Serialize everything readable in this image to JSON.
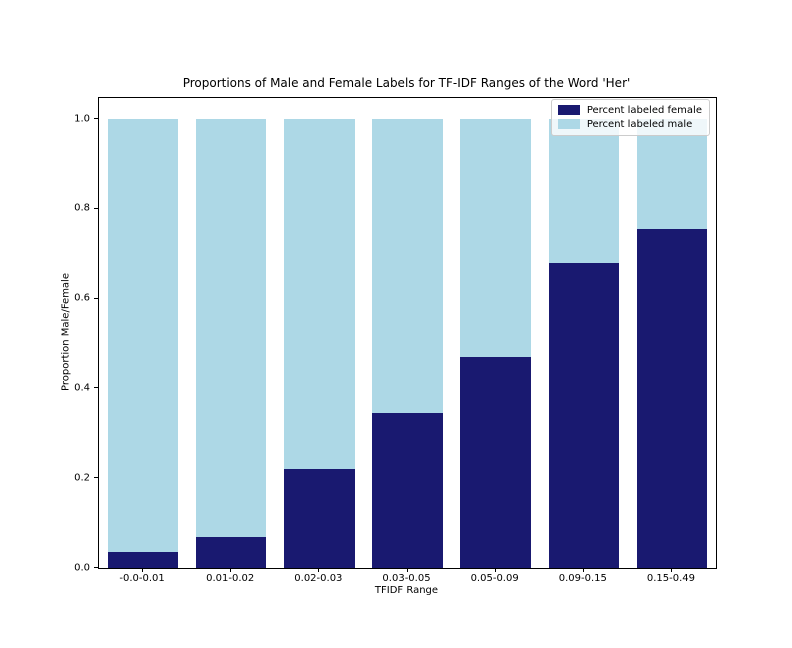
{
  "figure": {
    "background": "#ffffff"
  },
  "chart_data": {
    "type": "bar",
    "stacked": true,
    "title": "Proportions of Male and Female Labels for TF-IDF Ranges of the Word 'Her'",
    "xlabel": "TFIDF Range",
    "ylabel": "Proportion Male/Female",
    "categories": [
      "-0.0-0.01",
      "0.01-0.02",
      "0.02-0.03",
      "0.03-0.05",
      "0.05-0.09",
      "0.09-0.15",
      "0.15-0.49"
    ],
    "series": [
      {
        "name": "Percent labeled female",
        "color": "#191970",
        "values": [
          0.035,
          0.07,
          0.22,
          0.345,
          0.47,
          0.68,
          0.755
        ]
      },
      {
        "name": "Percent labeled male",
        "color": "#add8e6",
        "values": [
          0.965,
          0.93,
          0.78,
          0.655,
          0.53,
          0.32,
          0.245
        ]
      }
    ],
    "ylim": [
      0,
      1.047
    ],
    "yticks": [
      "0.0",
      "0.2",
      "0.4",
      "0.6",
      "0.8",
      "1.0"
    ],
    "legend_position": "upper right",
    "grid": false
  }
}
